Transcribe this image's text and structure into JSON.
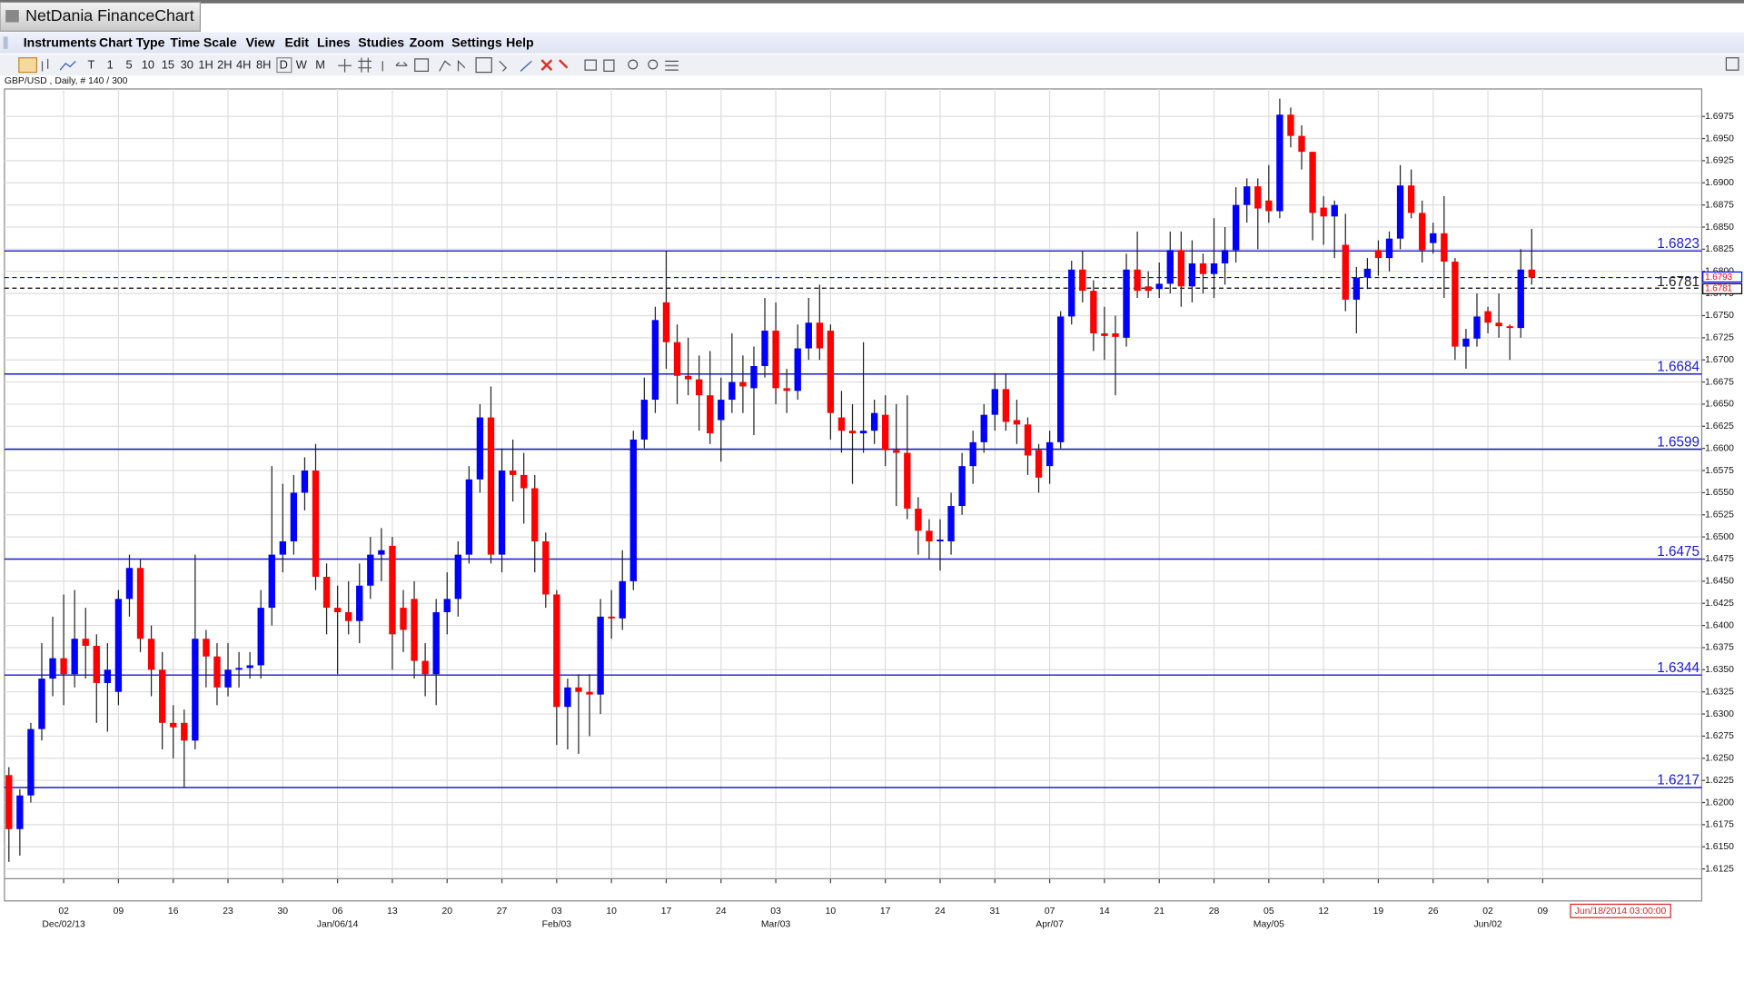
{
  "window": {
    "title": "NetDania FinanceChart"
  },
  "menu": [
    "Instruments",
    "Chart Type",
    "Time Scale",
    "View",
    "Edit",
    "Lines",
    "Studies",
    "Zoom",
    "Settings",
    "Help"
  ],
  "toolbar": [
    "T",
    "1",
    "5",
    "10",
    "15",
    "30",
    "1H",
    "2H",
    "4H",
    "8H",
    "D",
    "W",
    "M"
  ],
  "chart_data": {
    "type": "candlestick",
    "subtitle": "GBP/USD , Daily, # 140 / 300",
    "up_color": "#0000ff",
    "down_color": "#ff0000",
    "x": [
      "2013-11-25",
      "2013-11-26",
      "2013-11-27",
      "2013-11-28",
      "2013-11-29",
      "2013-12-02",
      "2013-12-03",
      "2013-12-04",
      "2013-12-05",
      "2013-12-06",
      "2013-12-09",
      "2013-12-10",
      "2013-12-11",
      "2013-12-12",
      "2013-12-13",
      "2013-12-16",
      "2013-12-17",
      "2013-12-18",
      "2013-12-19",
      "2013-12-20",
      "2013-12-23",
      "2013-12-24",
      "2013-12-25",
      "2013-12-26",
      "2013-12-27",
      "2013-12-30",
      "2013-12-31",
      "2014-01-01",
      "2014-01-02",
      "2014-01-03",
      "2014-01-06",
      "2014-01-07",
      "2014-01-08",
      "2014-01-09",
      "2014-01-10",
      "2014-01-13",
      "2014-01-14",
      "2014-01-15",
      "2014-01-16",
      "2014-01-17",
      "2014-01-20",
      "2014-01-21",
      "2014-01-22",
      "2014-01-23",
      "2014-01-24",
      "2014-01-27",
      "2014-01-28",
      "2014-01-29",
      "2014-01-30",
      "2014-01-31",
      "2014-02-03",
      "2014-02-04",
      "2014-02-05",
      "2014-02-06",
      "2014-02-07",
      "2014-02-10",
      "2014-02-11",
      "2014-02-12",
      "2014-02-13",
      "2014-02-14",
      "2014-02-17",
      "2014-02-18",
      "2014-02-19",
      "2014-02-20",
      "2014-02-21",
      "2014-02-24",
      "2014-02-25",
      "2014-02-26",
      "2014-02-27",
      "2014-02-28",
      "2014-03-03",
      "2014-03-04",
      "2014-03-05",
      "2014-03-06",
      "2014-03-07",
      "2014-03-10",
      "2014-03-11",
      "2014-03-12",
      "2014-03-13",
      "2014-03-14",
      "2014-03-17",
      "2014-03-18",
      "2014-03-19",
      "2014-03-20",
      "2014-03-21",
      "2014-03-24",
      "2014-03-25",
      "2014-03-26",
      "2014-03-27",
      "2014-03-28",
      "2014-03-31",
      "2014-04-01",
      "2014-04-02",
      "2014-04-03",
      "2014-04-04",
      "2014-04-07",
      "2014-04-08",
      "2014-04-09",
      "2014-04-10",
      "2014-04-11",
      "2014-04-14",
      "2014-04-15",
      "2014-04-16",
      "2014-04-17",
      "2014-04-18",
      "2014-04-21",
      "2014-04-22",
      "2014-04-23",
      "2014-04-24",
      "2014-04-25",
      "2014-04-28",
      "2014-04-29",
      "2014-04-30",
      "2014-05-01",
      "2014-05-02",
      "2014-05-05",
      "2014-05-06",
      "2014-05-07",
      "2014-05-08",
      "2014-05-09",
      "2014-05-12",
      "2014-05-13",
      "2014-05-14",
      "2014-05-15",
      "2014-05-16",
      "2014-05-19",
      "2014-05-20",
      "2014-05-21",
      "2014-05-22",
      "2014-05-23",
      "2014-05-26",
      "2014-05-27",
      "2014-05-28",
      "2014-05-29",
      "2014-05-30",
      "2014-06-02",
      "2014-06-03",
      "2014-06-04",
      "2014-06-05",
      "2014-06-06"
    ],
    "open": [
      1.6231,
      1.617,
      1.6208,
      1.6283,
      1.634,
      1.6363,
      1.6345,
      1.6385,
      1.6377,
      1.6335,
      1.6325,
      1.643,
      1.6465,
      1.6385,
      1.635,
      1.629,
      1.629,
      1.627,
      1.6385,
      1.6365,
      1.633,
      1.635,
      1.6352,
      1.6355,
      1.642,
      1.648,
      1.6495,
      1.655,
      1.6575,
      1.6455,
      1.642,
      1.6415,
      1.6405,
      1.6445,
      1.648,
      1.649,
      1.642,
      1.643,
      1.636,
      1.6345,
      1.6415,
      1.643,
      1.648,
      1.6565,
      1.6635,
      1.648,
      1.6575,
      1.657,
      1.6555,
      1.6495,
      1.6435,
      1.6308,
      1.633,
      1.6325,
      1.6322,
      1.641,
      1.6408,
      1.645,
      1.661,
      1.6655,
      1.6765,
      1.672,
      1.6682,
      1.6678,
      1.666,
      1.6632,
      1.6655,
      1.6675,
      1.6668,
      1.6693,
      1.6733,
      1.6668,
      1.6665,
      1.6713,
      1.6742,
      1.6733,
      1.6635,
      1.662,
      1.6617,
      1.662,
      1.6638,
      1.6598,
      1.6595,
      1.6532,
      1.6507,
      1.6495,
      1.6495,
      1.6535,
      1.658,
      1.6607,
      1.6638,
      1.6667,
      1.6632,
      1.6627,
      1.6598,
      1.658,
      1.6607,
      1.6749,
      1.6802,
      1.6778,
      1.673,
      1.673,
      1.6725,
      1.6802,
      1.6783,
      1.678,
      1.6786,
      1.6824,
      1.6783,
      1.6809,
      1.6797,
      1.6809,
      1.6824,
      1.6875,
      1.6896,
      1.688,
      1.6868,
      1.6977,
      1.6953,
      1.6935,
      1.6872,
      1.6862,
      1.683,
      1.6768,
      1.6793,
      1.6824,
      1.6815,
      1.6837,
      1.6897,
      1.6866,
      1.6832,
      1.6843,
      1.6811,
      1.6715,
      1.6724,
      1.6755,
      1.6742,
      1.6738,
      1.6736,
      1.6802
    ],
    "high": [
      1.624,
      1.6215,
      1.629,
      1.638,
      1.641,
      1.6435,
      1.644,
      1.642,
      1.639,
      1.638,
      1.644,
      1.648,
      1.6475,
      1.64,
      1.637,
      1.631,
      1.6305,
      1.648,
      1.6395,
      1.638,
      1.638,
      1.637,
      1.637,
      1.644,
      1.658,
      1.656,
      1.657,
      1.659,
      1.6605,
      1.647,
      1.6445,
      1.645,
      1.647,
      1.65,
      1.651,
      1.65,
      1.644,
      1.645,
      1.638,
      1.643,
      1.646,
      1.6495,
      1.658,
      1.665,
      1.667,
      1.66,
      1.661,
      1.6595,
      1.657,
      1.6505,
      1.644,
      1.634,
      1.6345,
      1.6345,
      1.643,
      1.644,
      1.6485,
      1.662,
      1.668,
      1.676,
      1.6823,
      1.674,
      1.6725,
      1.6705,
      1.671,
      1.668,
      1.673,
      1.6705,
      1.6715,
      1.677,
      1.6765,
      1.669,
      1.674,
      1.677,
      1.6785,
      1.674,
      1.6665,
      1.665,
      1.672,
      1.6655,
      1.666,
      1.665,
      1.666,
      1.6545,
      1.652,
      1.652,
      1.655,
      1.6595,
      1.662,
      1.665,
      1.6685,
      1.6685,
      1.6655,
      1.6635,
      1.6605,
      1.662,
      1.6755,
      1.6812,
      1.6823,
      1.679,
      1.676,
      1.675,
      1.682,
      1.6845,
      1.68,
      1.681,
      1.6845,
      1.6845,
      1.6835,
      1.682,
      1.686,
      1.685,
      1.6895,
      1.6905,
      1.6905,
      1.692,
      1.6995,
      1.6985,
      1.6965,
      1.6935,
      1.6885,
      1.688,
      1.6865,
      1.6805,
      1.6815,
      1.6835,
      1.6845,
      1.692,
      1.6915,
      1.688,
      1.6855,
      1.6885,
      1.6815,
      1.6735,
      1.6775,
      1.676,
      1.6775,
      1.674,
      1.6825,
      1.6848
    ],
    "low": [
      1.6133,
      1.614,
      1.62,
      1.627,
      1.632,
      1.631,
      1.633,
      1.634,
      1.629,
      1.628,
      1.631,
      1.641,
      1.637,
      1.632,
      1.626,
      1.625,
      1.6217,
      1.626,
      1.633,
      1.631,
      1.632,
      1.633,
      1.634,
      1.634,
      1.64,
      1.646,
      1.648,
      1.653,
      1.644,
      1.639,
      1.6345,
      1.639,
      1.638,
      1.643,
      1.645,
      1.635,
      1.637,
      1.634,
      1.632,
      1.631,
      1.639,
      1.641,
      1.647,
      1.655,
      1.647,
      1.646,
      1.654,
      1.6515,
      1.646,
      1.642,
      1.6265,
      1.626,
      1.6255,
      1.6275,
      1.63,
      1.6385,
      1.6395,
      1.644,
      1.66,
      1.664,
      1.669,
      1.665,
      1.666,
      1.662,
      1.6605,
      1.6585,
      1.664,
      1.664,
      1.6615,
      1.668,
      1.665,
      1.664,
      1.6655,
      1.67,
      1.67,
      1.661,
      1.6595,
      1.656,
      1.6595,
      1.6605,
      1.658,
      1.6535,
      1.652,
      1.648,
      1.6475,
      1.6462,
      1.648,
      1.6525,
      1.656,
      1.6595,
      1.662,
      1.662,
      1.6605,
      1.657,
      1.655,
      1.656,
      1.66,
      1.674,
      1.6765,
      1.671,
      1.67,
      1.666,
      1.6715,
      1.677,
      1.677,
      1.677,
      1.6775,
      1.676,
      1.6765,
      1.6775,
      1.677,
      1.6785,
      1.681,
      1.6855,
      1.6825,
      1.6855,
      1.686,
      1.694,
      1.6915,
      1.6835,
      1.683,
      1.6815,
      1.6755,
      1.673,
      1.678,
      1.6795,
      1.68,
      1.6825,
      1.686,
      1.681,
      1.682,
      1.677,
      1.67,
      1.669,
      1.6715,
      1.673,
      1.6725,
      1.67,
      1.6725,
      1.6785
    ],
    "close": [
      1.617,
      1.6208,
      1.6283,
      1.634,
      1.6363,
      1.6345,
      1.6385,
      1.6377,
      1.6335,
      1.635,
      1.643,
      1.6465,
      1.6385,
      1.635,
      1.629,
      1.6285,
      1.627,
      1.6385,
      1.6365,
      1.633,
      1.635,
      1.6352,
      1.6355,
      1.642,
      1.648,
      1.6495,
      1.655,
      1.6575,
      1.6455,
      1.642,
      1.6415,
      1.6405,
      1.6445,
      1.648,
      1.6485,
      1.639,
      1.6395,
      1.636,
      1.6345,
      1.6415,
      1.643,
      1.648,
      1.6565,
      1.6635,
      1.648,
      1.6575,
      1.657,
      1.6555,
      1.6495,
      1.6435,
      1.6308,
      1.633,
      1.6325,
      1.6322,
      1.641,
      1.6408,
      1.645,
      1.661,
      1.6655,
      1.6745,
      1.672,
      1.6682,
      1.6678,
      1.666,
      1.6617,
      1.6655,
      1.6675,
      1.667,
      1.6693,
      1.6733,
      1.6668,
      1.6665,
      1.6713,
      1.6742,
      1.6713,
      1.664,
      1.662,
      1.6617,
      1.662,
      1.664,
      1.6598,
      1.6595,
      1.6532,
      1.6507,
      1.6495,
      1.6497,
      1.6535,
      1.658,
      1.6607,
      1.6638,
      1.6667,
      1.663,
      1.6627,
      1.6592,
      1.6567,
      1.6607,
      1.6749,
      1.6802,
      1.6778,
      1.673,
      1.6727,
      1.6726,
      1.6802,
      1.6778,
      1.6778,
      1.6786,
      1.6824,
      1.6783,
      1.6809,
      1.6797,
      1.6809,
      1.6824,
      1.6875,
      1.6896,
      1.6871,
      1.6868,
      1.6977,
      1.6953,
      1.6935,
      1.6866,
      1.6862,
      1.6875,
      1.6768,
      1.6793,
      1.6803,
      1.6815,
      1.6837,
      1.6897,
      1.6866,
      1.6824,
      1.6843,
      1.6811,
      1.6715,
      1.6724,
      1.6749,
      1.6742,
      1.6738,
      1.6736,
      1.6802,
      1.6793
    ],
    "ylim": [
      1.6114,
      1.7006
    ],
    "yticks": [
      1.6125,
      {
        "value": 1.615,
        "label": "1.6150"
      },
      1.6175,
      {
        "value": 1.62,
        "label": "1.6200"
      },
      1.6225,
      {
        "value": 1.625,
        "label": "1.6250"
      },
      1.6275,
      {
        "value": 1.63,
        "label": "1.6300"
      },
      1.6325,
      {
        "value": 1.635,
        "label": "1.6350"
      },
      1.6375,
      {
        "value": 1.64,
        "label": "1.6400"
      },
      1.6425,
      {
        "value": 1.645,
        "label": "1.6450"
      },
      1.6475,
      {
        "value": 1.65,
        "label": "1.6500"
      },
      1.6525,
      {
        "value": 1.655,
        "label": "1.6550"
      },
      1.6575,
      {
        "value": 1.66,
        "label": "1.6600"
      },
      1.6625,
      {
        "value": 1.665,
        "label": "1.6650"
      },
      1.6675,
      {
        "value": 1.67,
        "label": "1.6700"
      },
      1.6725,
      {
        "value": 1.675,
        "label": "1.6750"
      },
      1.6775,
      {
        "value": 1.68,
        "label": "1.6800"
      },
      1.6825,
      {
        "value": 1.685,
        "label": "1.6850"
      },
      1.6875,
      {
        "value": 1.69,
        "label": "1.6900"
      },
      1.6925,
      {
        "value": 1.695,
        "label": "1.6950"
      },
      1.6975
    ],
    "xticks": [
      {
        "value": "2013-12-02",
        "label": "02"
      },
      {
        "value": "2013-12-09",
        "label": "09"
      },
      {
        "value": "2013-12-16",
        "label": "16"
      },
      {
        "value": "2013-12-23",
        "label": "23"
      },
      {
        "value": "2013-12-30",
        "label": "30"
      },
      {
        "value": "2014-01-06",
        "label": "06"
      },
      {
        "value": "2014-01-13",
        "label": "13"
      },
      {
        "value": "2014-01-20",
        "label": "20"
      },
      {
        "value": "2014-01-27",
        "label": "27"
      },
      {
        "value": "2014-02-03",
        "label": "03"
      },
      {
        "value": "2014-02-10",
        "label": "10"
      },
      {
        "value": "2014-02-17",
        "label": "17"
      },
      {
        "value": "2014-02-24",
        "label": "24"
      },
      {
        "value": "2014-03-03",
        "label": "03"
      },
      {
        "value": "2014-03-10",
        "label": "10"
      },
      {
        "value": "2014-03-17",
        "label": "17"
      },
      {
        "value": "2014-03-24",
        "label": "24"
      },
      {
        "value": "2014-03-31",
        "label": "31"
      },
      {
        "value": "2014-04-07",
        "label": "07"
      },
      {
        "value": "2014-04-14",
        "label": "14"
      },
      {
        "value": "2014-04-21",
        "label": "21"
      },
      {
        "value": "2014-04-28",
        "label": "28"
      },
      {
        "value": "2014-05-05",
        "label": "05"
      },
      {
        "value": "2014-05-12",
        "label": "12"
      },
      {
        "value": "2014-05-19",
        "label": "19"
      },
      {
        "value": "2014-05-26",
        "label": "26"
      },
      {
        "value": "2014-06-02",
        "label": "02"
      },
      {
        "value": "2014-06-09",
        "label": "09"
      }
    ],
    "xticks_month": [
      {
        "value": "2013-12-02",
        "label": "Dec/02/13"
      },
      {
        "value": "2014-01-06",
        "label": "Jan/06/14"
      },
      {
        "value": "2014-02-03",
        "label": "Feb/03"
      },
      {
        "value": "2014-03-03",
        "label": "Mar/03"
      },
      {
        "value": "2014-04-07",
        "label": "Apr/07"
      },
      {
        "value": "2014-05-05",
        "label": "May/05"
      },
      {
        "value": "2014-06-02",
        "label": "Jun/02"
      }
    ],
    "grid": true,
    "levels": [
      1.6823,
      1.6684,
      1.6599,
      1.6475,
      1.6344,
      1.6217
    ],
    "level_color": "#1a1ad0",
    "last_price": 1.6793,
    "reference_line": 1.6781,
    "cursor_time": "Jun/18/2014 03:00:00"
  }
}
